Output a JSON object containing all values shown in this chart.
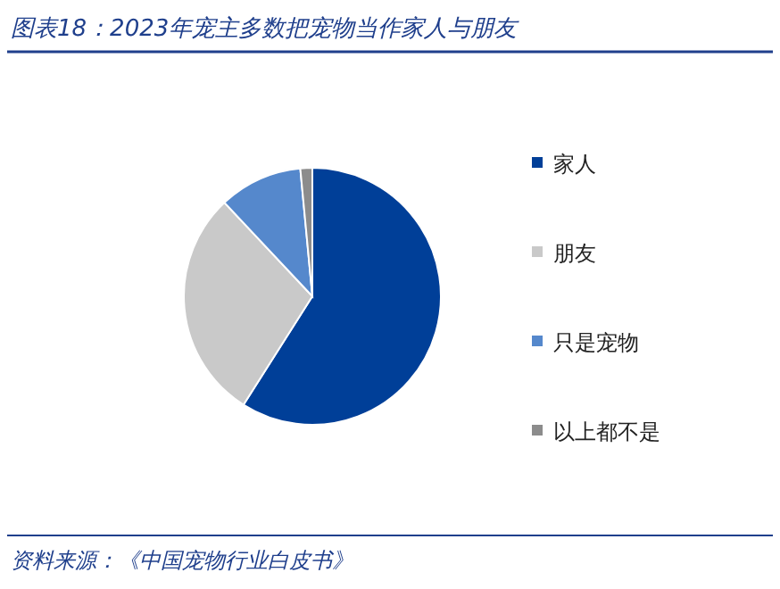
{
  "chart_data": {
    "type": "pie",
    "title": "图表18：2023年宠主多数把宠物当作家人与朋友",
    "categories": [
      "家人",
      "朋友",
      "只是宠物",
      "以上都不是"
    ],
    "values": [
      59,
      29,
      10.5,
      1.5
    ],
    "colors": [
      "#003f98",
      "#c9c9c9",
      "#5588cc",
      "#8c8c8c"
    ],
    "legend": "right",
    "annotations": [
      "资料来源：《中国宠物行业白皮书》"
    ]
  }
}
